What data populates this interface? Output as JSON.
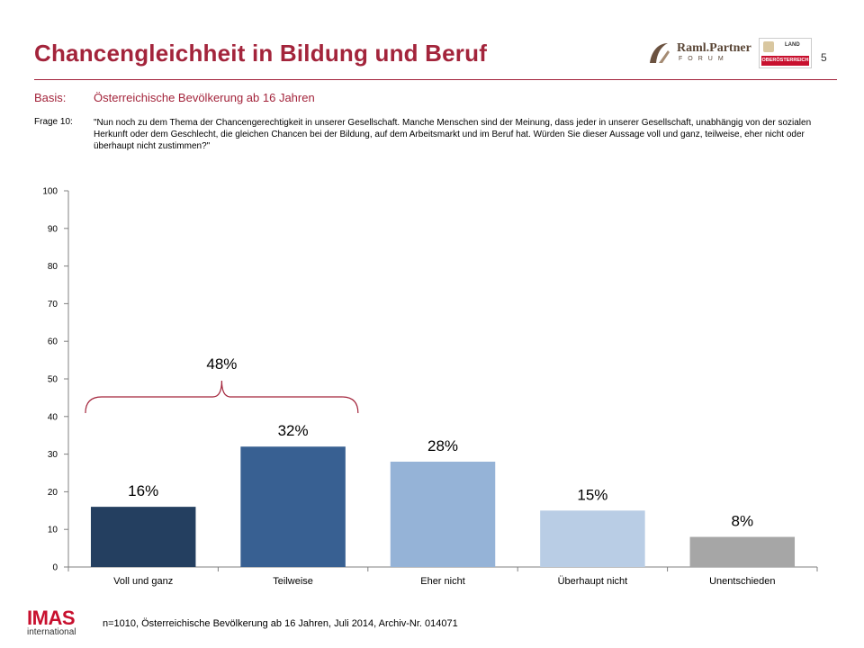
{
  "header": {
    "title": "Chancengleichheit in Bildung und Beruf",
    "page_number": "5",
    "logos": {
      "raml": {
        "name": "Raml.Partner",
        "sub": "FORUM",
        "icon": "raml-partner-logo"
      },
      "land": {
        "top": "LAND",
        "bottom": "OBERÖSTERREICH",
        "icon": "land-oberoesterreich-logo"
      }
    }
  },
  "basis": {
    "label": "Basis:",
    "text": "Österreichische Bevölkerung ab 16 Jahren"
  },
  "frage": {
    "label": "Frage 10:",
    "text": "\"Nun noch zu dem Thema der Chancengerechtigkeit in unserer Gesellschaft. Manche Menschen sind der Meinung, dass jeder in unserer Gesellschaft, unabhängig von der sozialen Herkunft oder dem Geschlecht, die gleichen Chancen bei der Bildung, auf dem Arbeitsmarkt und im Beruf hat. Würden Sie dieser Aussage voll und ganz, teilweise, eher nicht oder überhaupt nicht zustimmen?\""
  },
  "chart_data": {
    "type": "bar",
    "categories": [
      "Voll und ganz",
      "Teilweise",
      "Eher nicht",
      "Überhaupt nicht",
      "Unentschieden"
    ],
    "values": [
      16,
      32,
      28,
      15,
      8
    ],
    "data_labels": [
      "16%",
      "32%",
      "28%",
      "15%",
      "8%"
    ],
    "colors": [
      "#243f60",
      "#386092",
      "#95b3d7",
      "#b9cde5",
      "#a6a6a6"
    ],
    "ylim": [
      0,
      100
    ],
    "yticks": [
      0,
      10,
      20,
      30,
      40,
      50,
      60,
      70,
      80,
      90,
      100
    ],
    "grid": false,
    "annotation": {
      "text": "48%",
      "bracket_over": [
        "Voll und ganz",
        "Teilweise"
      ],
      "color": "#a3243b"
    }
  },
  "footer": {
    "logo_text": "IMAS",
    "logo_sub": "international",
    "note": "n=1010, Österreichische Bevölkerung ab 16 Jahren, Juli 2014, Archiv-Nr. 014071"
  }
}
